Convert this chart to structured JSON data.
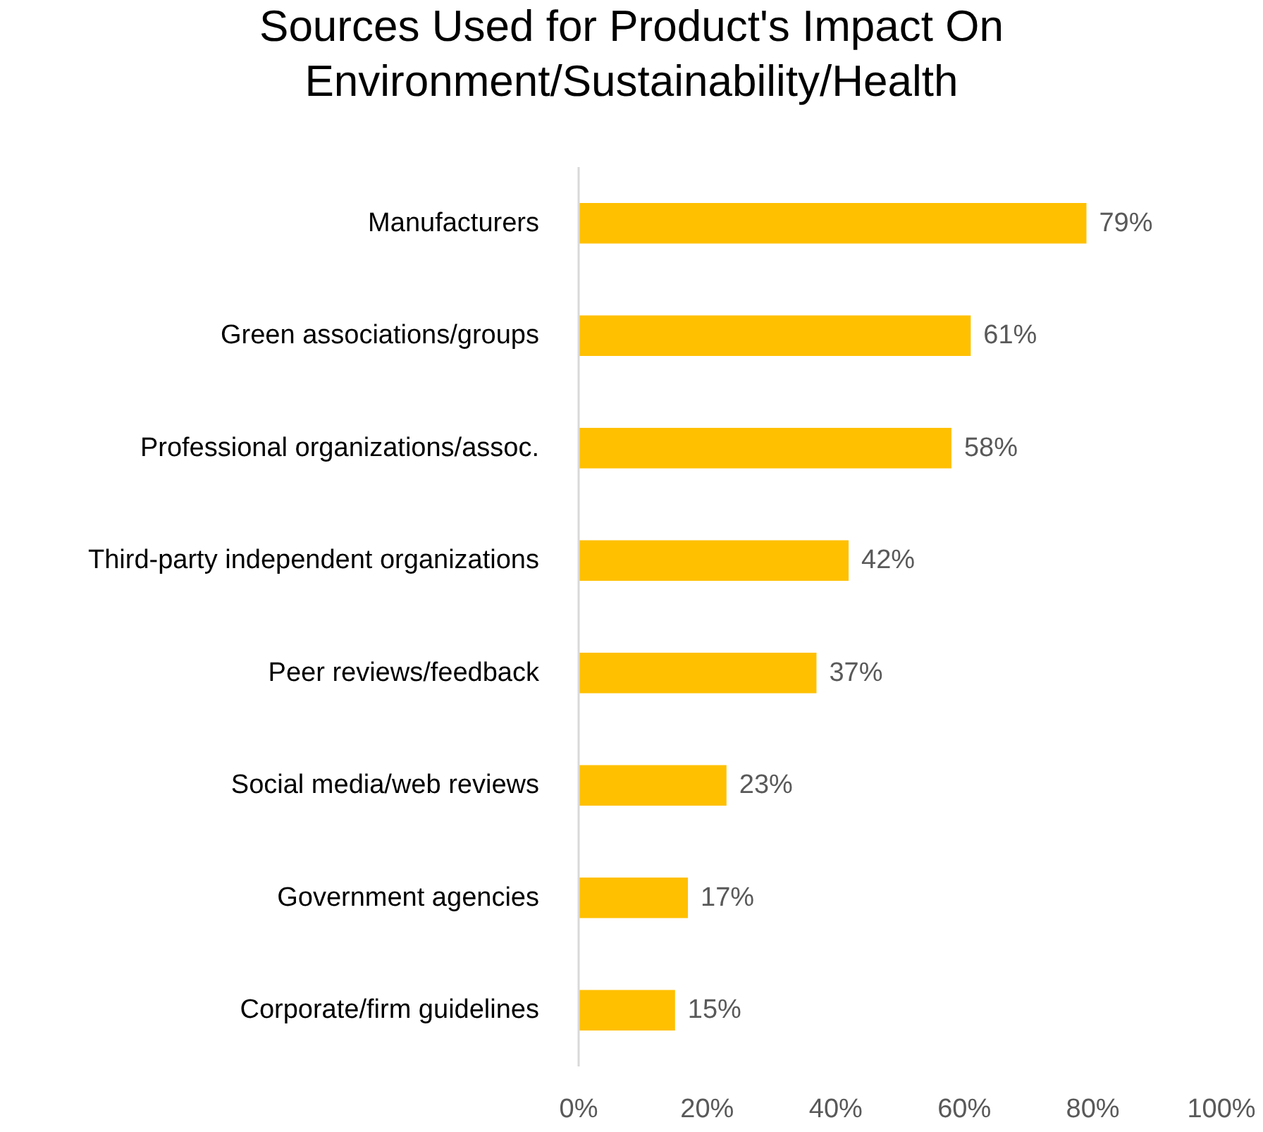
{
  "chart_data": {
    "type": "bar",
    "orientation": "horizontal",
    "title": "Sources Used for Product's Impact On Environment/Sustainability/Health",
    "categories": [
      "Manufacturers",
      "Green associations/groups",
      "Professional organizations/assoc.",
      "Third-party independent organizations",
      "Peer reviews/feedback",
      "Social media/web reviews",
      "Government agencies",
      "Corporate/firm guidelines"
    ],
    "values": [
      79,
      61,
      58,
      42,
      37,
      23,
      17,
      15
    ],
    "value_labels": [
      "79%",
      "61%",
      "58%",
      "42%",
      "37%",
      "23%",
      "17%",
      "15%"
    ],
    "color": "#ffc000",
    "xlim": [
      0,
      100
    ],
    "xticks": [
      {
        "value": 0,
        "label": "0%"
      },
      {
        "value": 20,
        "label": "20%"
      },
      {
        "value": 40,
        "label": "40%"
      },
      {
        "value": 60,
        "label": "60%"
      },
      {
        "value": 80,
        "label": "80%"
      },
      {
        "value": 100,
        "label": "100%"
      }
    ]
  }
}
